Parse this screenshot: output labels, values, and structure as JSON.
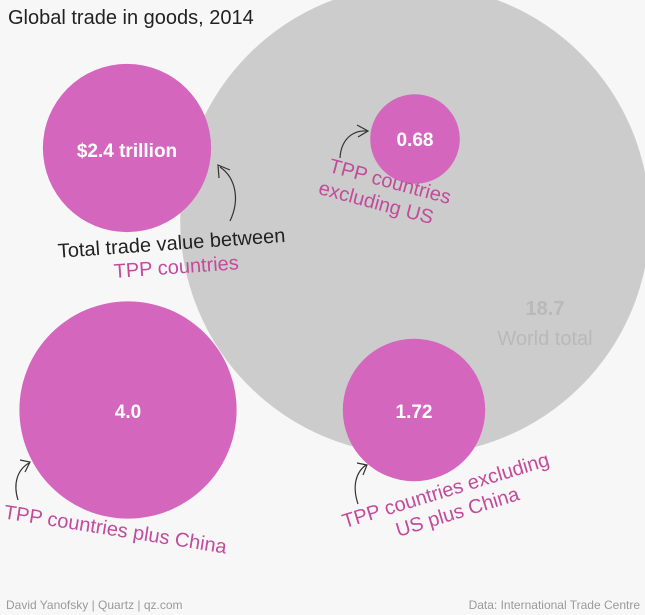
{
  "chart_data": {
    "type": "bubble",
    "title": "Global trade in goods, 2014",
    "unit": "$ trillion",
    "world": {
      "value": "18.7",
      "label": "World total",
      "color": "#cccccc"
    },
    "bubbles": [
      {
        "id": "tpp",
        "value": 2.4,
        "value_label": "$2.4 trillion",
        "label_lines": [
          "Total trade value between",
          "TPP countries"
        ],
        "color": "#d466bd"
      },
      {
        "id": "tpp-ex-us",
        "value": 0.68,
        "value_label": "0.68",
        "label_lines": [
          "TPP countries",
          "excluding US"
        ],
        "color": "#d466bd"
      },
      {
        "id": "tpp-plus-china",
        "value": 4.0,
        "value_label": "4.0",
        "label_lines": [
          "TPP countries plus China"
        ],
        "color": "#d466bd"
      },
      {
        "id": "tpp-ex-us-plus-china",
        "value": 1.72,
        "value_label": "1.72",
        "label_lines": [
          "TPP countries excluding",
          "US plus China"
        ],
        "color": "#d466bd"
      }
    ]
  },
  "colors": {
    "background": "#f7f7f7",
    "bubble": "#d466bd",
    "world": "#cccccc",
    "annotation_pink": "#c24b9c",
    "annotation_dark": "#222222",
    "footer": "#9a9a9a"
  },
  "footer": {
    "credit": "David Yanofsky | Quartz | qz.com",
    "source": "Data: International Trade Centre"
  }
}
